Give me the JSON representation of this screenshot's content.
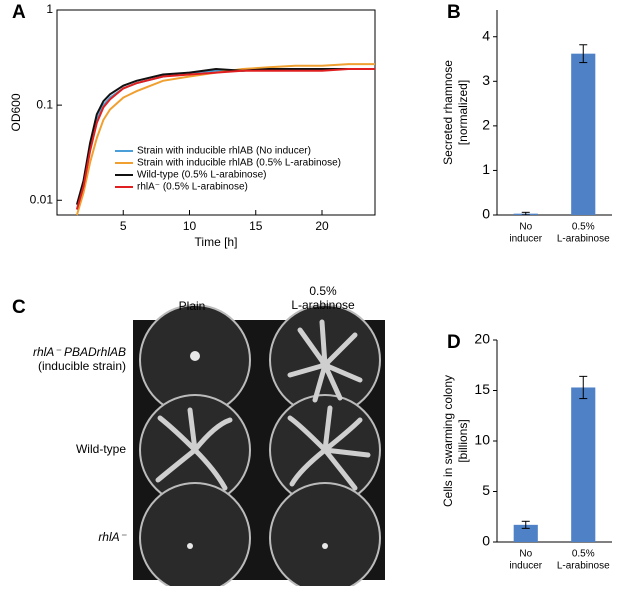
{
  "chart_data": [
    {
      "type": "line",
      "panel": "A",
      "xlabel": "Time [h]",
      "ylabel": "OD600",
      "log_y": true,
      "x": [
        1.5,
        2,
        2.5,
        3,
        3.5,
        4,
        5,
        6,
        8,
        10,
        12,
        14,
        16,
        18,
        20,
        22,
        24
      ],
      "series": [
        {
          "name": "Strain with inducible rhlAB (No inducer)",
          "color": "#4a9fd8",
          "values": [
            0.008,
            0.015,
            0.035,
            0.07,
            0.1,
            0.12,
            0.15,
            0.17,
            0.2,
            0.22,
            0.23,
            0.23,
            0.24,
            0.24,
            0.24,
            0.24,
            0.24
          ]
        },
        {
          "name": "Strain with inducible rhlAB (0.5% L-arabinose)",
          "color": "#f0a030",
          "values": [
            0.007,
            0.012,
            0.025,
            0.045,
            0.07,
            0.09,
            0.12,
            0.14,
            0.18,
            0.2,
            0.22,
            0.24,
            0.25,
            0.26,
            0.26,
            0.27,
            0.27
          ]
        },
        {
          "name": "Wild-type (0.5% L-arabinose)",
          "color": "#111111",
          "values": [
            0.009,
            0.016,
            0.04,
            0.08,
            0.11,
            0.13,
            0.16,
            0.18,
            0.21,
            0.22,
            0.24,
            0.23,
            0.24,
            0.24,
            0.24,
            0.24,
            0.24
          ]
        },
        {
          "name": "rhlA⁻ (0.5% L-arabinose)",
          "color": "#e02020",
          "values": [
            0.008,
            0.014,
            0.033,
            0.065,
            0.095,
            0.115,
            0.15,
            0.17,
            0.2,
            0.21,
            0.22,
            0.23,
            0.23,
            0.23,
            0.23,
            0.24,
            0.24
          ]
        }
      ],
      "xlim": [
        0,
        24
      ],
      "ylim": [
        0.007,
        1
      ],
      "xticks": [
        5,
        10,
        15,
        20
      ],
      "yticks": [
        0.01,
        0.1,
        1
      ]
    },
    {
      "type": "bar",
      "panel": "B",
      "ylabel": [
        "Secreted rhamnose",
        "[normalized]"
      ],
      "categories": [
        [
          "No",
          "inducer"
        ],
        [
          "0.5%",
          "L-arabinose"
        ]
      ],
      "values": [
        0.03,
        3.62
      ],
      "errors": [
        0.03,
        0.2
      ],
      "color": "#4f81c7",
      "ylim": [
        0,
        4.6
      ],
      "yticks": [
        0,
        1,
        2,
        3,
        4
      ]
    },
    {
      "type": "bar",
      "panel": "D",
      "ylabel": [
        "Cells in swarming colony",
        "[billions]"
      ],
      "categories": [
        [
          "No",
          "inducer"
        ],
        [
          "0.5%",
          "L-arabinose"
        ]
      ],
      "values": [
        1.7,
        15.3
      ],
      "errors": [
        0.35,
        1.1
      ],
      "color": "#4f81c7",
      "ylim": [
        0,
        20
      ],
      "yticks": [
        0,
        5,
        10,
        15,
        20
      ]
    }
  ],
  "photo": {
    "panel": "C",
    "columns": [
      [
        "Plain"
      ],
      [
        "0.5%",
        "L-arabinose"
      ]
    ],
    "rows": [
      [
        "rhlA⁻ PBADrhlAB",
        "(inducible strain)"
      ],
      [
        "Wild-type"
      ],
      [
        "rhlA⁻"
      ]
    ]
  }
}
